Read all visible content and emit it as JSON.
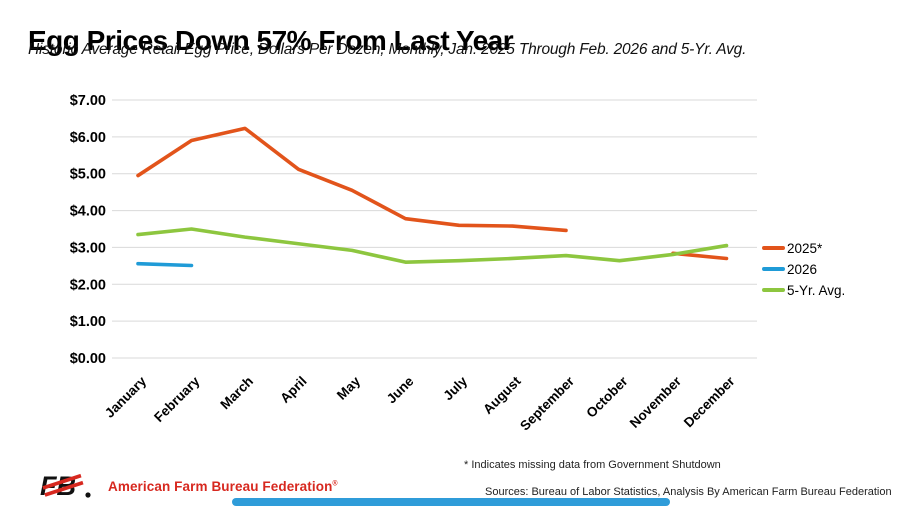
{
  "header": {
    "title": "Egg Prices Down 57% From Last Year",
    "subtitle": "Historic Average Retail Egg Price, Dollars Per Dozen, Monthly, Jan. 2025 Through Feb. 2026 and 5-Yr. Avg."
  },
  "chart_data": {
    "type": "line",
    "title": "Egg Prices Down 57% From Last Year",
    "xlabel": "",
    "ylabel": "Dollars Per Dozen",
    "ylim": [
      0,
      7
    ],
    "grid": true,
    "legend_position": "right",
    "gridline_color": "#d9d9d9",
    "y_tick_labels": [
      "$0.00",
      "$1.00",
      "$2.00",
      "$3.00",
      "$4.00",
      "$5.00",
      "$6.00",
      "$7.00"
    ],
    "categories": [
      "January",
      "February",
      "March",
      "April",
      "May",
      "June",
      "July",
      "August",
      "September",
      "October",
      "November",
      "December"
    ],
    "series": [
      {
        "name": "2025*",
        "color": "#e2541b",
        "values": [
          4.95,
          5.9,
          6.23,
          5.12,
          4.55,
          3.78,
          3.6,
          3.58,
          3.46,
          null,
          2.84,
          2.7
        ]
      },
      {
        "name": "2026",
        "color": "#1f9bd7",
        "values": [
          2.56,
          2.51,
          null,
          null,
          null,
          null,
          null,
          null,
          null,
          null,
          null,
          null
        ]
      },
      {
        "name": "5-Yr. Avg.",
        "color": "#8dc63f",
        "values": [
          3.35,
          3.5,
          3.28,
          3.1,
          2.92,
          2.6,
          2.64,
          2.7,
          2.78,
          2.64,
          2.81,
          3.05
        ]
      }
    ]
  },
  "footer": {
    "footnote": "* Indicates missing data from Government Shutdown",
    "sources": "Sources: Bureau of Labor Statistics, Analysis By American Farm Bureau Federation",
    "logo_text": "American Farm Bureau Federation",
    "logo_reg_mark": "®"
  }
}
